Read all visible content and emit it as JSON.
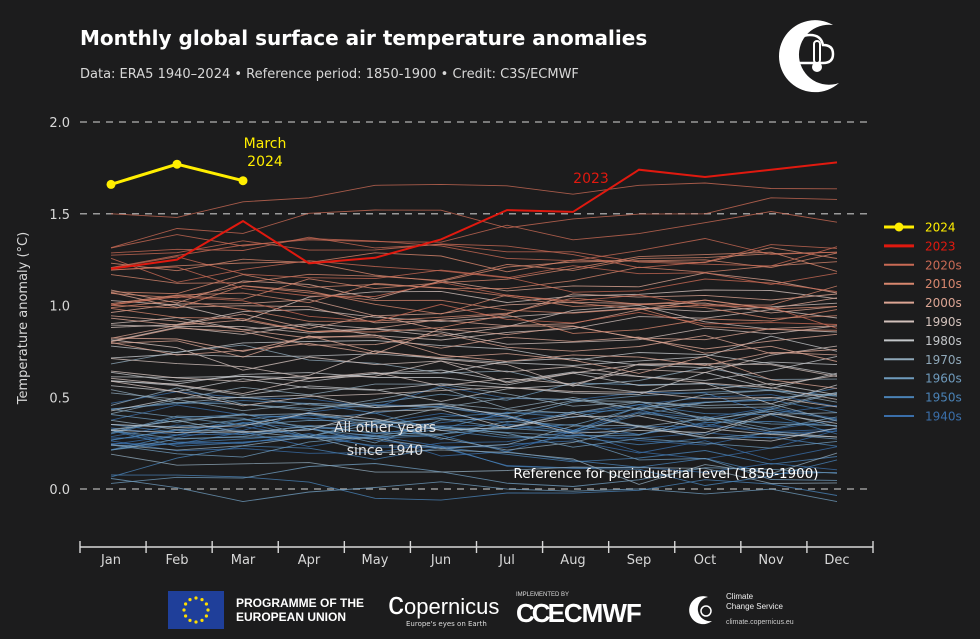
{
  "header": {
    "title": "Monthly global surface air temperature anomalies",
    "subtitle": "Data: ERA5 1940–2024 • Reference period: 1850-1900 • Credit: C3S/ECMWF"
  },
  "chart_data": {
    "type": "line",
    "ylabel": "Temperature anomaly (°C)",
    "ylim": [
      -0.3,
      2.0
    ],
    "yticks": [
      "0.0",
      "0.5",
      "1.0",
      "1.5",
      "2.0"
    ],
    "categories": [
      "Jan",
      "Feb",
      "Mar",
      "Apr",
      "May",
      "Jun",
      "Jul",
      "Aug",
      "Sep",
      "Oct",
      "Nov",
      "Dec"
    ],
    "highlight_series": [
      {
        "name": "2024",
        "color": "#ffee00",
        "values": [
          1.66,
          1.77,
          1.68
        ]
      },
      {
        "name": "2023",
        "color": "#e0190f",
        "values": [
          1.2,
          1.25,
          1.46,
          1.23,
          1.26,
          1.36,
          1.52,
          1.51,
          1.74,
          1.7,
          1.74,
          1.78
        ]
      }
    ],
    "legend": [
      {
        "label": "2024",
        "color": "#ffee00"
      },
      {
        "label": "2023",
        "color": "#e0190f"
      },
      {
        "label": "2020s",
        "color": "#c96a55"
      },
      {
        "label": "2010s",
        "color": "#d8876e"
      },
      {
        "label": "2000s",
        "color": "#dca594"
      },
      {
        "label": "1990s",
        "color": "#d2c1bb"
      },
      {
        "label": "1980s",
        "color": "#c3c6c9"
      },
      {
        "label": "1970s",
        "color": "#8fa8b9"
      },
      {
        "label": "1960s",
        "color": "#6f9bbd"
      },
      {
        "label": "1950s",
        "color": "#4a82b6"
      },
      {
        "label": "1940s",
        "color": "#3a6ea9"
      }
    ],
    "decades": [
      {
        "color": "#3a6ea9",
        "base": 0.23
      },
      {
        "color": "#4a82b6",
        "base": 0.22
      },
      {
        "color": "#6f9bbd",
        "base": 0.27
      },
      {
        "color": "#8fa8b9",
        "base": 0.42
      },
      {
        "color": "#c3c6c9",
        "base": 0.6
      },
      {
        "color": "#d2c1bb",
        "base": 0.78
      },
      {
        "color": "#dca594",
        "base": 0.93
      },
      {
        "color": "#d8876e",
        "base": 1.1
      },
      {
        "color": "#c96a55",
        "base": 1.24
      }
    ],
    "annotations": {
      "march2024_line1": "March",
      "march2024_line2": "2024",
      "label2023": "2023",
      "others_line1": "All other years",
      "others_line2": "since 1940",
      "reference": "Reference for preindustrial level (1850-1900)"
    },
    "grid": "dashed at 0.0, 1.5, 2.0"
  },
  "footer": {
    "eu_line1": "PROGRAMME OF THE",
    "eu_line2": "EUROPEAN UNION",
    "copernicus": "opernicus",
    "copernicus_c": "c",
    "copernicus_tagline": "Europe's eyes on Earth",
    "ecmwf_small": "IMPLEMENTED BY",
    "ecmwf": "ECMWF",
    "c3s_line1": "Climate",
    "c3s_line2": "Change Service",
    "c3s_url": "climate.copernicus.eu"
  }
}
